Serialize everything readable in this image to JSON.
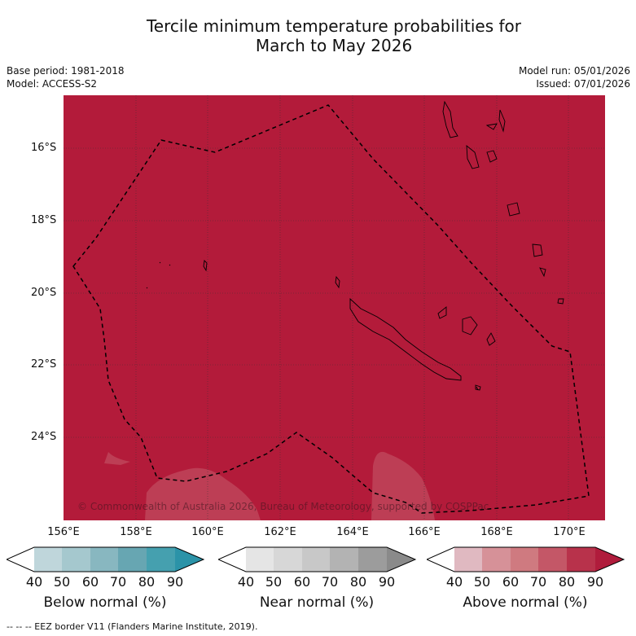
{
  "title_line1": "Tercile minimum temperature probabilities for",
  "title_line2": "March to May 2026",
  "base_period": "Base period: 1981-2018",
  "model": "Model: ACCESS-S2",
  "model_run": "Model run: 05/01/2026",
  "issued": "Issued: 07/01/2026",
  "lat_ticks": [
    "16°S",
    "18°S",
    "20°S",
    "22°S",
    "24°S"
  ],
  "lon_ticks": [
    "156°E",
    "158°E",
    "160°E",
    "162°E",
    "164°E",
    "166°E",
    "168°E",
    "170°E"
  ],
  "copyright": "© Commonwealth of Australia 2026, Bureau of Meteorology, supported by COSPPac",
  "colorbars": [
    {
      "label": "Below normal (%)",
      "ticks": [
        "40",
        "50",
        "60",
        "70",
        "80",
        "90"
      ],
      "colors": [
        "#ffffff",
        "#bfd6db",
        "#a5c8ce",
        "#88b7c0",
        "#67a6b2",
        "#45a0af",
        "#2b93a8"
      ]
    },
    {
      "label": "Near normal (%)",
      "ticks": [
        "40",
        "50",
        "60",
        "70",
        "80",
        "90"
      ],
      "colors": [
        "#ffffff",
        "#e5e5e5",
        "#d7d7d7",
        "#c8c8c8",
        "#b3b3b3",
        "#9c9c9c",
        "#8a8a8a"
      ]
    },
    {
      "label": "Above normal (%)",
      "ticks": [
        "40",
        "50",
        "60",
        "70",
        "80",
        "90"
      ],
      "colors": [
        "#ffffff",
        "#e0b9c1",
        "#d69198",
        "#cf7a80",
        "#c45767",
        "#b8324b",
        "#b01c3c"
      ]
    }
  ],
  "footer": "--  --  -- EEZ border V11 (Flanders Marine Institute, 2019).",
  "map_colors": {
    "above_90": "#b31b3a",
    "above_80": "#bd3e55",
    "grid": "#333333",
    "coast": "#000000"
  }
}
